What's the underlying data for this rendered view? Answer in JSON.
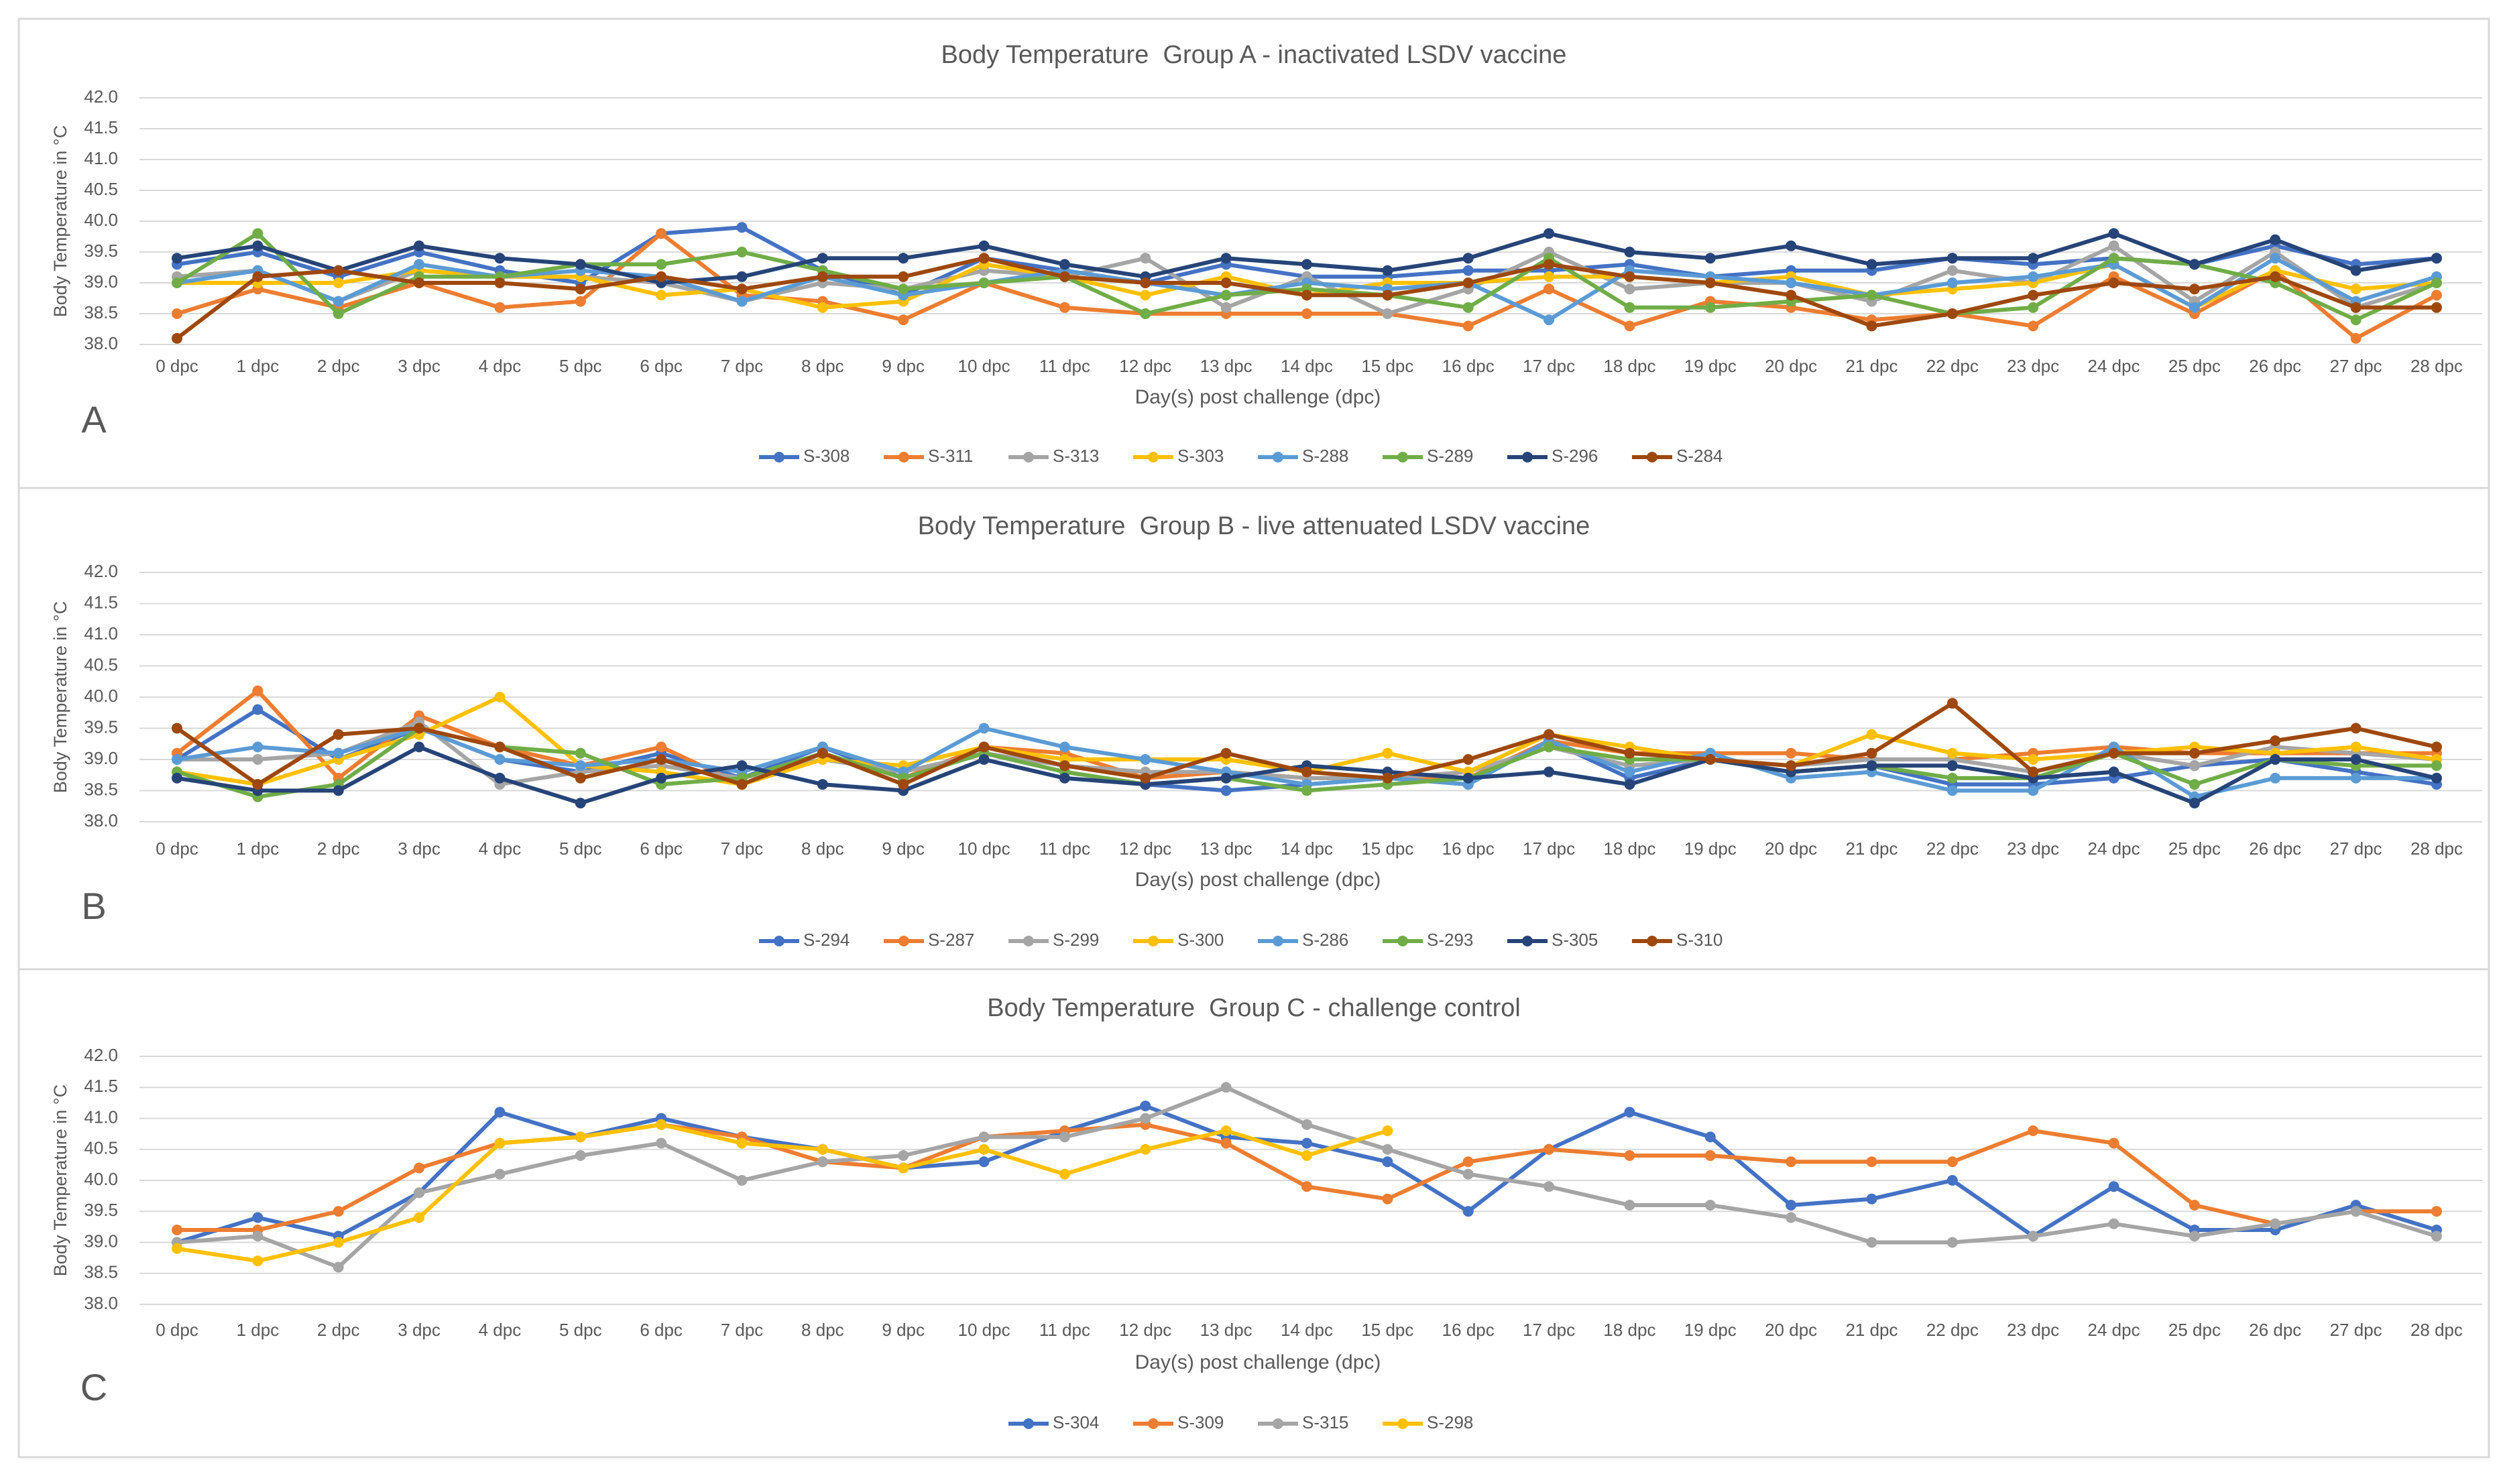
{
  "chart_data": [
    {
      "type": "line",
      "panel_letter": "A",
      "title": "Body Temperature  Group A - inactivated LSDV vaccine",
      "xlabel": "Day(s) post challenge (dpc)",
      "ylabel": "Body Temperature in °C",
      "ylim": [
        38.0,
        42.0
      ],
      "yticks": [
        "42.0",
        "41.5",
        "41.0",
        "40.5",
        "40.0",
        "39.5",
        "39.0",
        "38.5",
        "38.0"
      ],
      "categories": [
        "0 dpc",
        "1 dpc",
        "2 dpc",
        "3 dpc",
        "4 dpc",
        "5 dpc",
        "6 dpc",
        "7 dpc",
        "8 dpc",
        "9 dpc",
        "10 dpc",
        "11 dpc",
        "12 dpc",
        "13 dpc",
        "14 dpc",
        "15 dpc",
        "16 dpc",
        "17 dpc",
        "18 dpc",
        "19 dpc",
        "20 dpc",
        "21 dpc",
        "22 dpc",
        "23 dpc",
        "24 dpc",
        "25 dpc",
        "26 dpc",
        "27 dpc",
        "28 dpc"
      ],
      "grid": true,
      "legend_position": "bottom",
      "series": [
        {
          "name": "S-308",
          "color": "#4472C4",
          "values": [
            39.3,
            39.5,
            39.1,
            39.5,
            39.2,
            39.0,
            39.8,
            39.9,
            39.2,
            38.8,
            39.4,
            39.2,
            39.0,
            39.3,
            39.1,
            39.1,
            39.2,
            39.2,
            39.3,
            39.1,
            39.2,
            39.2,
            39.4,
            39.3,
            39.4,
            39.3,
            39.6,
            39.3,
            39.4
          ]
        },
        {
          "name": "S-311",
          "color": "#ED7D31",
          "values": [
            38.5,
            38.9,
            38.6,
            39.0,
            38.6,
            38.7,
            39.8,
            38.8,
            38.7,
            38.4,
            39.0,
            38.6,
            38.5,
            38.5,
            38.5,
            38.5,
            38.3,
            38.9,
            38.3,
            38.7,
            38.6,
            38.4,
            38.5,
            38.3,
            39.1,
            38.5,
            39.2,
            38.1,
            38.8
          ]
        },
        {
          "name": "S-313",
          "color": "#A5A5A5",
          "values": [
            39.1,
            39.2,
            38.7,
            39.2,
            39.1,
            39.1,
            39.0,
            38.7,
            39.0,
            38.9,
            39.2,
            39.1,
            39.4,
            38.6,
            39.1,
            38.5,
            38.9,
            39.5,
            38.9,
            39.0,
            39.0,
            38.7,
            39.2,
            39.0,
            39.6,
            38.7,
            39.5,
            38.6,
            39.0
          ]
        },
        {
          "name": "S-303",
          "color": "#FFC000",
          "values": [
            39.0,
            39.0,
            39.0,
            39.2,
            39.1,
            39.1,
            38.8,
            38.9,
            38.6,
            38.7,
            39.3,
            39.1,
            38.8,
            39.1,
            38.8,
            39.0,
            39.0,
            39.1,
            39.1,
            39.0,
            39.1,
            38.8,
            38.9,
            39.0,
            39.3,
            38.6,
            39.2,
            38.9,
            39.0
          ]
        },
        {
          "name": "S-288",
          "color": "#5B9BD5",
          "values": [
            39.0,
            39.2,
            38.7,
            39.3,
            39.1,
            39.2,
            39.1,
            38.7,
            39.1,
            38.8,
            39.0,
            39.2,
            39.0,
            38.8,
            39.0,
            38.9,
            39.0,
            38.4,
            39.2,
            39.1,
            39.0,
            38.8,
            39.0,
            39.1,
            39.3,
            38.6,
            39.4,
            38.7,
            39.1
          ]
        },
        {
          "name": "S-289",
          "color": "#70AD47",
          "values": [
            39.0,
            39.8,
            38.5,
            39.1,
            39.1,
            39.3,
            39.3,
            39.5,
            39.2,
            38.9,
            39.0,
            39.1,
            38.5,
            38.8,
            38.9,
            38.8,
            38.6,
            39.4,
            38.6,
            38.6,
            38.7,
            38.8,
            38.5,
            38.6,
            39.4,
            39.3,
            39.0,
            38.4,
            39.0
          ]
        },
        {
          "name": "S-296",
          "color": "#264478",
          "values": [
            39.4,
            39.6,
            39.2,
            39.6,
            39.4,
            39.3,
            39.0,
            39.1,
            39.4,
            39.4,
            39.6,
            39.3,
            39.1,
            39.4,
            39.3,
            39.2,
            39.4,
            39.8,
            39.5,
            39.4,
            39.6,
            39.3,
            39.4,
            39.4,
            39.8,
            39.3,
            39.7,
            39.2,
            39.4
          ]
        },
        {
          "name": "S-284",
          "color": "#9E480E",
          "values": [
            38.1,
            39.1,
            39.2,
            39.0,
            39.0,
            38.9,
            39.1,
            38.9,
            39.1,
            39.1,
            39.4,
            39.1,
            39.0,
            39.0,
            38.8,
            38.8,
            39.0,
            39.3,
            39.1,
            39.0,
            38.8,
            38.3,
            38.5,
            38.8,
            39.0,
            38.9,
            39.1,
            38.6,
            38.6
          ]
        }
      ]
    },
    {
      "type": "line",
      "panel_letter": "B",
      "title": "Body Temperature  Group B - live attenuated LSDV vaccine",
      "xlabel": "Day(s) post challenge (dpc)",
      "ylabel": "Body Temperature in °C",
      "ylim": [
        38.0,
        42.0
      ],
      "yticks": [
        "42.0",
        "41.5",
        "41.0",
        "40.5",
        "40.0",
        "39.5",
        "39.0",
        "38.5",
        "38.0"
      ],
      "categories": [
        "0 dpc",
        "1 dpc",
        "2 dpc",
        "3 dpc",
        "4 dpc",
        "5 dpc",
        "6 dpc",
        "7 dpc",
        "8 dpc",
        "9 dpc",
        "10 dpc",
        "11 dpc",
        "12 dpc",
        "13 dpc",
        "14 dpc",
        "15 dpc",
        "16 dpc",
        "17 dpc",
        "18 dpc",
        "19 dpc",
        "20 dpc",
        "21 dpc",
        "22 dpc",
        "23 dpc",
        "24 dpc",
        "25 dpc",
        "26 dpc",
        "27 dpc",
        "28 dpc"
      ],
      "grid": true,
      "legend_position": "bottom",
      "series": [
        {
          "name": "S-294",
          "color": "#4472C4",
          "values": [
            39.0,
            39.8,
            39.0,
            39.5,
            39.0,
            38.8,
            39.1,
            38.7,
            39.2,
            38.7,
            39.1,
            38.8,
            38.6,
            38.5,
            38.6,
            38.7,
            38.6,
            39.3,
            38.7,
            39.0,
            38.8,
            38.9,
            38.6,
            38.6,
            38.7,
            38.9,
            39.0,
            38.8,
            38.6
          ]
        },
        {
          "name": "S-287",
          "color": "#ED7D31",
          "values": [
            39.1,
            40.1,
            38.7,
            39.7,
            39.2,
            38.9,
            39.2,
            38.6,
            39.1,
            38.7,
            39.2,
            39.1,
            38.7,
            38.8,
            38.7,
            38.7,
            38.7,
            39.3,
            39.1,
            39.1,
            39.1,
            39.0,
            39.0,
            39.1,
            39.2,
            39.1,
            39.1,
            39.1,
            39.1
          ]
        },
        {
          "name": "S-299",
          "color": "#A5A5A5",
          "values": [
            39.0,
            39.0,
            39.1,
            39.6,
            38.6,
            38.8,
            38.9,
            38.7,
            39.0,
            38.8,
            39.1,
            38.9,
            38.8,
            38.8,
            38.7,
            38.7,
            38.8,
            39.2,
            38.9,
            39.0,
            38.9,
            39.0,
            39.0,
            38.8,
            39.1,
            38.9,
            39.2,
            39.1,
            39.0
          ]
        },
        {
          "name": "S-300",
          "color": "#FFC000",
          "values": [
            38.8,
            38.6,
            39.0,
            39.4,
            40.0,
            38.9,
            38.8,
            38.6,
            39.0,
            38.9,
            39.2,
            39.0,
            39.0,
            39.0,
            38.8,
            39.1,
            38.8,
            39.4,
            39.2,
            39.0,
            38.9,
            39.4,
            39.1,
            39.0,
            39.1,
            39.2,
            39.1,
            39.2,
            39.0
          ]
        },
        {
          "name": "S-286",
          "color": "#5B9BD5",
          "values": [
            39.0,
            39.2,
            39.1,
            39.5,
            39.0,
            38.9,
            39.0,
            38.8,
            39.2,
            38.8,
            39.5,
            39.2,
            39.0,
            38.8,
            38.6,
            38.7,
            38.6,
            39.3,
            38.8,
            39.1,
            38.7,
            38.8,
            38.5,
            38.5,
            39.2,
            38.4,
            38.7,
            38.7,
            38.7
          ]
        },
        {
          "name": "S-293",
          "color": "#70AD47",
          "values": [
            38.8,
            38.4,
            38.6,
            39.5,
            39.2,
            39.1,
            38.6,
            38.7,
            39.1,
            38.7,
            39.1,
            38.8,
            38.6,
            38.7,
            38.5,
            38.6,
            38.7,
            39.2,
            39.0,
            39.0,
            38.8,
            38.9,
            38.7,
            38.7,
            39.1,
            38.6,
            39.0,
            38.9,
            38.9
          ]
        },
        {
          "name": "S-305",
          "color": "#264478",
          "values": [
            38.7,
            38.5,
            38.5,
            39.2,
            38.7,
            38.3,
            38.7,
            38.9,
            38.6,
            38.5,
            39.0,
            38.7,
            38.6,
            38.7,
            38.9,
            38.8,
            38.7,
            38.8,
            38.6,
            39.0,
            38.8,
            38.9,
            38.9,
            38.7,
            38.8,
            38.3,
            39.0,
            39.0,
            38.7
          ]
        },
        {
          "name": "S-310",
          "color": "#9E480E",
          "values": [
            39.5,
            38.6,
            39.4,
            39.5,
            39.2,
            38.7,
            39.0,
            38.6,
            39.1,
            38.6,
            39.2,
            38.9,
            38.7,
            39.1,
            38.8,
            38.7,
            39.0,
            39.4,
            39.1,
            39.0,
            38.9,
            39.1,
            39.9,
            38.8,
            39.1,
            39.1,
            39.3,
            39.5,
            39.2
          ]
        }
      ]
    },
    {
      "type": "line",
      "panel_letter": "C",
      "title": "Body Temperature  Group C - challenge control",
      "xlabel": "Day(s) post challenge (dpc)",
      "ylabel": "Body Temperature in °C",
      "ylim": [
        38.0,
        42.0
      ],
      "yticks": [
        "42.0",
        "41.5",
        "41.0",
        "40.5",
        "40.0",
        "39.5",
        "39.0",
        "38.5",
        "38.0"
      ],
      "categories": [
        "0 dpc",
        "1 dpc",
        "2 dpc",
        "3 dpc",
        "4 dpc",
        "5 dpc",
        "6 dpc",
        "7 dpc",
        "8 dpc",
        "9 dpc",
        "10 dpc",
        "11 dpc",
        "12 dpc",
        "13 dpc",
        "14 dpc",
        "15 dpc",
        "16 dpc",
        "17 dpc",
        "18 dpc",
        "19 dpc",
        "20 dpc",
        "21 dpc",
        "22 dpc",
        "23 dpc",
        "24 dpc",
        "25 dpc",
        "26 dpc",
        "27 dpc",
        "28 dpc"
      ],
      "grid": true,
      "legend_position": "bottom",
      "series": [
        {
          "name": "S-304",
          "color": "#4472C4",
          "values": [
            39.0,
            39.4,
            39.1,
            39.8,
            41.1,
            40.7,
            41.0,
            40.7,
            40.5,
            40.2,
            40.3,
            40.8,
            41.2,
            40.7,
            40.6,
            40.3,
            39.5,
            40.5,
            41.1,
            40.7,
            39.6,
            39.7,
            40.0,
            39.1,
            39.9,
            39.2,
            39.2,
            39.6,
            39.2
          ]
        },
        {
          "name": "S-309",
          "color": "#ED7D31",
          "values": [
            39.2,
            39.2,
            39.5,
            40.2,
            40.6,
            40.7,
            40.9,
            40.7,
            40.3,
            40.2,
            40.7,
            40.8,
            40.9,
            40.6,
            39.9,
            39.7,
            40.3,
            40.5,
            40.4,
            40.4,
            40.3,
            40.3,
            40.3,
            40.8,
            40.6,
            39.6,
            39.3,
            39.5,
            39.5
          ]
        },
        {
          "name": "S-315",
          "color": "#A5A5A5",
          "values": [
            39.0,
            39.1,
            38.6,
            39.8,
            40.1,
            40.4,
            40.6,
            40.0,
            40.3,
            40.4,
            40.7,
            40.7,
            41.0,
            41.5,
            40.9,
            40.5,
            40.1,
            39.9,
            39.6,
            39.6,
            39.4,
            39.0,
            39.0,
            39.1,
            39.3,
            39.1,
            39.3,
            39.5,
            39.1
          ]
        },
        {
          "name": "S-298",
          "color": "#FFC000",
          "values": [
            38.9,
            38.7,
            39.0,
            39.4,
            40.6,
            40.7,
            40.9,
            40.6,
            40.5,
            40.2,
            40.5,
            40.1,
            40.5,
            40.8,
            40.4,
            40.8,
            null,
            null,
            null,
            null,
            null,
            null,
            null,
            null,
            null,
            null,
            null,
            null,
            null
          ]
        }
      ]
    }
  ]
}
